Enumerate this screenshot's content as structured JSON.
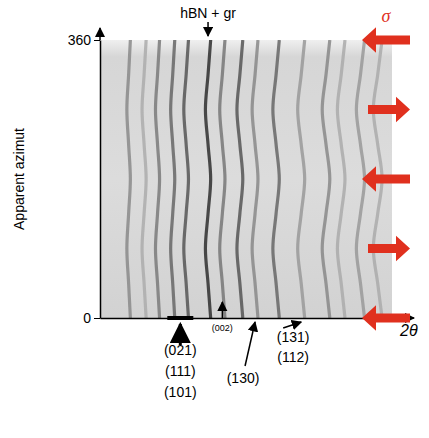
{
  "chart_data": {
    "type": "diffraction-image",
    "ylabel": "Apparent azimut",
    "xlabel": "2θ",
    "ylim": [
      0,
      360
    ],
    "yticks": [
      0,
      360
    ],
    "xlim": [
      0,
      100
    ],
    "tick_labels": "y",
    "azimuths": [
      0,
      45,
      90,
      135,
      180,
      225,
      270,
      315,
      360
    ],
    "rings": [
      {
        "color": "#8a8a8a",
        "x": [
          10.4,
          9.8,
          9.2,
          9.8,
          10.4,
          9.8,
          9.2,
          9.8,
          10.4
        ]
      },
      {
        "color": "#ababab",
        "x": [
          15.8,
          15.1,
          14.4,
          15.1,
          15.8,
          15.1,
          14.4,
          15.1,
          15.8
        ]
      },
      {
        "color": "#7a7a7a",
        "x": [
          20.4,
          19.7,
          19.0,
          19.7,
          20.4,
          19.7,
          19.0,
          19.7,
          20.4
        ]
      },
      {
        "color": "#666666",
        "x": [
          25.6,
          24.9,
          24.2,
          24.9,
          25.6,
          24.9,
          24.2,
          24.9,
          25.6
        ]
      },
      {
        "color": "#555555",
        "x": [
          30.3,
          29.5,
          28.7,
          29.5,
          30.3,
          29.5,
          28.7,
          29.5,
          30.3
        ]
      },
      {
        "color": "#2e2e2e",
        "x": [
          37.9,
          37.0,
          36.1,
          37.0,
          37.9,
          37.0,
          36.1,
          37.0,
          37.9
        ]
      },
      {
        "color": "#777777",
        "x": [
          42.8,
          41.9,
          41.0,
          41.9,
          42.8,
          41.9,
          41.0,
          41.9,
          42.8
        ]
      },
      {
        "color": "#555555",
        "x": [
          48.9,
          47.9,
          46.9,
          47.9,
          48.9,
          47.9,
          46.9,
          47.9,
          48.9
        ]
      },
      {
        "color": "#888888",
        "x": [
          54.1,
          53.1,
          52.1,
          53.1,
          54.1,
          53.1,
          52.1,
          53.1,
          54.1
        ]
      },
      {
        "color": "#666666",
        "x": [
          61.4,
          60.3,
          59.2,
          60.3,
          61.4,
          60.3,
          59.2,
          60.3,
          61.4
        ]
      },
      {
        "color": "#999999",
        "x": [
          70.1,
          68.9,
          67.7,
          68.9,
          70.1,
          68.9,
          67.7,
          68.9,
          70.1
        ]
      },
      {
        "color": "#888888",
        "x": [
          78.7,
          77.4,
          76.1,
          77.4,
          78.7,
          77.4,
          76.1,
          77.4,
          78.7
        ]
      },
      {
        "color": "#aaaaaa",
        "x": [
          83.9,
          82.6,
          81.3,
          82.6,
          83.9,
          82.6,
          81.3,
          82.6,
          83.9
        ]
      },
      {
        "color": "#999999",
        "x": [
          90.6,
          89.2,
          87.8,
          89.2,
          90.6,
          89.2,
          87.8,
          89.2,
          90.6
        ]
      },
      {
        "color": "#aaaaaa",
        "x": [
          96.6,
          95.1,
          93.6,
          95.1,
          96.6,
          95.1,
          93.6,
          95.1,
          96.6
        ]
      }
    ],
    "top_annotation": {
      "x": 37.0,
      "text": "hBN + gr"
    },
    "bottom_annotations": [
      {
        "x": 27.5,
        "text": [
          "(021)",
          "(111)",
          "(101)"
        ]
      },
      {
        "x": 41.9,
        "text": [
          "(002)"
        ]
      },
      {
        "x": 53.1,
        "text": [
          "(130)"
        ]
      },
      {
        "x": 68.9,
        "text": [
          "(131)",
          "(112)"
        ]
      }
    ],
    "stress": {
      "label": "σ",
      "color": "#e0301e",
      "arrows": [
        {
          "azimuth": 360,
          "direction": "left"
        },
        {
          "azimuth": 270,
          "direction": "right"
        },
        {
          "azimuth": 180,
          "direction": "left"
        },
        {
          "azimuth": 90,
          "direction": "right"
        },
        {
          "azimuth": 0,
          "direction": "left"
        }
      ]
    }
  }
}
